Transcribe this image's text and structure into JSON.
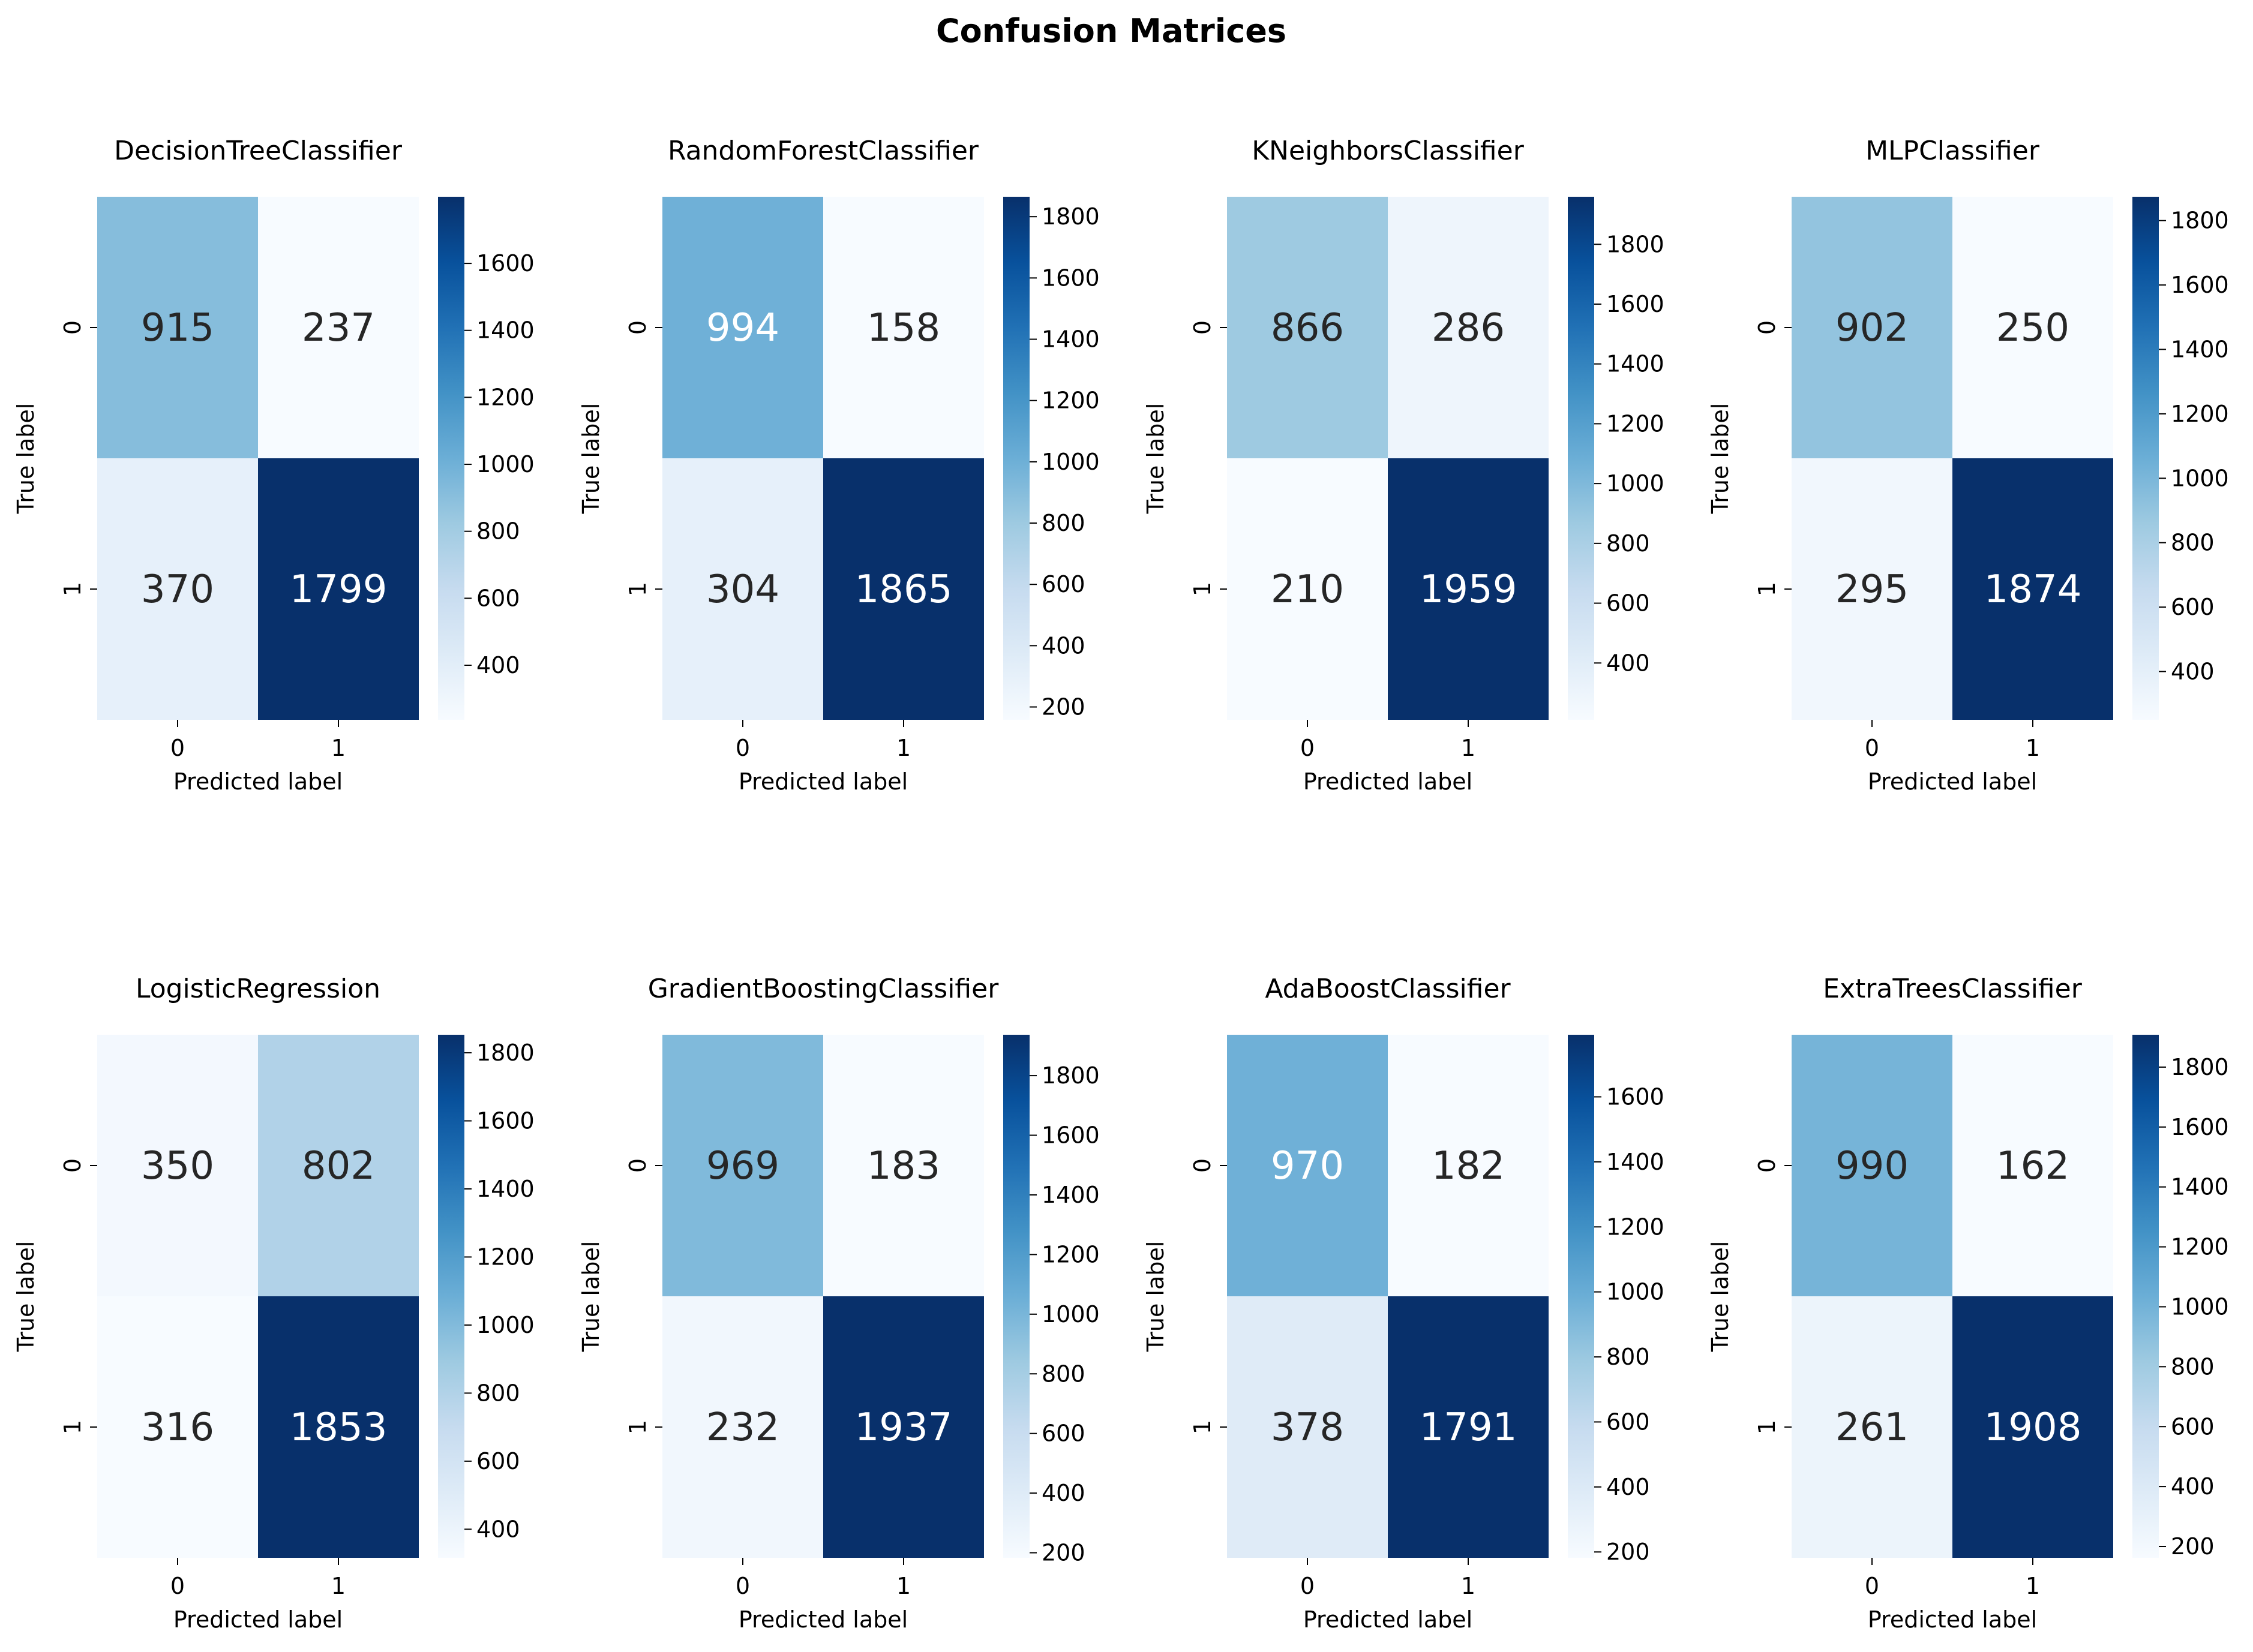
{
  "figure": {
    "title": "Confusion Matrices"
  },
  "chart_data": [
    {
      "type": "heatmap",
      "title": "DecisionTreeClassifier",
      "xlabel": "Predicted label",
      "ylabel": "True label",
      "x_categories": [
        "0",
        "1"
      ],
      "y_categories": [
        "0",
        "1"
      ],
      "matrix": [
        [
          915,
          237
        ],
        [
          370,
          1799
        ]
      ],
      "colorbar": {
        "min": 237,
        "max": 1799,
        "ticks": [
          400,
          600,
          800,
          1000,
          1200,
          1400,
          1600
        ]
      },
      "colormap": "Blues"
    },
    {
      "type": "heatmap",
      "title": "RandomForestClassifier",
      "xlabel": "Predicted label",
      "ylabel": "True label",
      "x_categories": [
        "0",
        "1"
      ],
      "y_categories": [
        "0",
        "1"
      ],
      "matrix": [
        [
          994,
          158
        ],
        [
          304,
          1865
        ]
      ],
      "colorbar": {
        "min": 158,
        "max": 1865,
        "ticks": [
          200,
          400,
          600,
          800,
          1000,
          1200,
          1400,
          1600,
          1800
        ]
      },
      "colormap": "Blues"
    },
    {
      "type": "heatmap",
      "title": "KNeighborsClassifier",
      "xlabel": "Predicted label",
      "ylabel": "True label",
      "x_categories": [
        "0",
        "1"
      ],
      "y_categories": [
        "0",
        "1"
      ],
      "matrix": [
        [
          866,
          286
        ],
        [
          210,
          1959
        ]
      ],
      "colorbar": {
        "min": 210,
        "max": 1959,
        "ticks": [
          400,
          600,
          800,
          1000,
          1200,
          1400,
          1600,
          1800
        ]
      },
      "colormap": "Blues"
    },
    {
      "type": "heatmap",
      "title": "MLPClassifier",
      "xlabel": "Predicted label",
      "ylabel": "True label",
      "x_categories": [
        "0",
        "1"
      ],
      "y_categories": [
        "0",
        "1"
      ],
      "matrix": [
        [
          902,
          250
        ],
        [
          295,
          1874
        ]
      ],
      "colorbar": {
        "min": 250,
        "max": 1874,
        "ticks": [
          400,
          600,
          800,
          1000,
          1200,
          1400,
          1600,
          1800
        ]
      },
      "colormap": "Blues"
    },
    {
      "type": "heatmap",
      "title": "LogisticRegression",
      "xlabel": "Predicted label",
      "ylabel": "True label",
      "x_categories": [
        "0",
        "1"
      ],
      "y_categories": [
        "0",
        "1"
      ],
      "matrix": [
        [
          350,
          802
        ],
        [
          316,
          1853
        ]
      ],
      "colorbar": {
        "min": 316,
        "max": 1853,
        "ticks": [
          400,
          600,
          800,
          1000,
          1200,
          1400,
          1600,
          1800
        ]
      },
      "colormap": "Blues"
    },
    {
      "type": "heatmap",
      "title": "GradientBoostingClassifier",
      "xlabel": "Predicted label",
      "ylabel": "True label",
      "x_categories": [
        "0",
        "1"
      ],
      "y_categories": [
        "0",
        "1"
      ],
      "matrix": [
        [
          969,
          183
        ],
        [
          232,
          1937
        ]
      ],
      "colorbar": {
        "min": 183,
        "max": 1937,
        "ticks": [
          200,
          400,
          600,
          800,
          1000,
          1200,
          1400,
          1600,
          1800
        ]
      },
      "colormap": "Blues"
    },
    {
      "type": "heatmap",
      "title": "AdaBoostClassifier",
      "xlabel": "Predicted label",
      "ylabel": "True label",
      "x_categories": [
        "0",
        "1"
      ],
      "y_categories": [
        "0",
        "1"
      ],
      "matrix": [
        [
          970,
          182
        ],
        [
          378,
          1791
        ]
      ],
      "colorbar": {
        "min": 182,
        "max": 1791,
        "ticks": [
          200,
          400,
          600,
          800,
          1000,
          1200,
          1400,
          1600
        ]
      },
      "colormap": "Blues"
    },
    {
      "type": "heatmap",
      "title": "ExtraTreesClassifier",
      "xlabel": "Predicted label",
      "ylabel": "True label",
      "x_categories": [
        "0",
        "1"
      ],
      "y_categories": [
        "0",
        "1"
      ],
      "matrix": [
        [
          990,
          162
        ],
        [
          261,
          1908
        ]
      ],
      "colorbar": {
        "min": 162,
        "max": 1908,
        "ticks": [
          200,
          400,
          600,
          800,
          1000,
          1200,
          1400,
          1600,
          1800
        ]
      },
      "colormap": "Blues"
    }
  ]
}
